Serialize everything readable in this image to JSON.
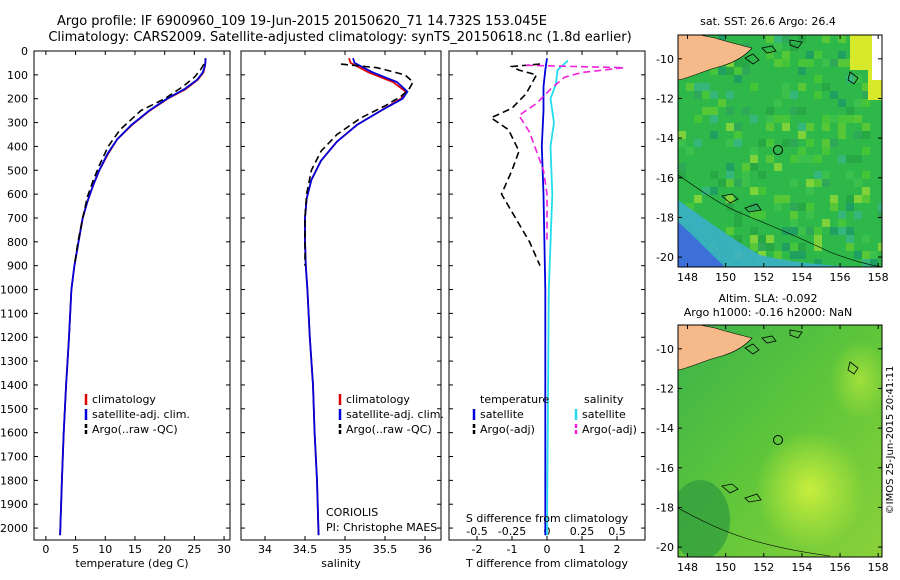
{
  "title": {
    "line1": "Argo profile: IF 6900960_109 19-Jun-2015 20150620_71 14.732S 153.045E",
    "line2": "Climatology: CARS2009. Satellite-adjusted climatology: synTS_20150618.nc (1.8d earlier)"
  },
  "colors": {
    "climatology": "#dd0000",
    "satellite": "#0000dd",
    "argo": "#000000",
    "salinity_sat": "#22ddee",
    "salinity_argo": "#ee22dd",
    "land": "#f5b98a"
  },
  "chart_data": [
    {
      "type": "line",
      "panel": "temperature",
      "xlabel": "temperature (deg C)",
      "ylabel": "",
      "xlim": [
        -2,
        31
      ],
      "ylim": [
        2050,
        0
      ],
      "xticks": [
        "0",
        "5",
        "10",
        "15",
        "20",
        "25",
        "30"
      ],
      "xtick_values": [
        0,
        5,
        10,
        15,
        20,
        25,
        30
      ],
      "yticks": [
        "0",
        "100",
        "200",
        "300",
        "400",
        "500",
        "600",
        "700",
        "800",
        "900",
        "1000",
        "1100",
        "1200",
        "1300",
        "1400",
        "1500",
        "1600",
        "1700",
        "1800",
        "1900",
        "2000"
      ],
      "ytick_values": [
        0,
        100,
        200,
        300,
        400,
        500,
        600,
        700,
        800,
        900,
        1000,
        1100,
        1200,
        1300,
        1400,
        1500,
        1600,
        1700,
        1800,
        1900,
        2000
      ],
      "legend": [
        "climatology",
        "satellite-adj. clim.",
        "Argo(..raw -QC)"
      ],
      "series": [
        {
          "name": "climatology",
          "color": "#dd0000",
          "dash": "solid",
          "points": [
            [
              26.9,
              30
            ],
            [
              26.8,
              60
            ],
            [
              26.5,
              90
            ],
            [
              25.6,
              120
            ],
            [
              23.5,
              160
            ],
            [
              20.5,
              200
            ],
            [
              17.5,
              250
            ],
            [
              14.5,
              310
            ],
            [
              12.0,
              370
            ],
            [
              10.5,
              430
            ],
            [
              9.0,
              500
            ],
            [
              8.0,
              560
            ],
            [
              7.0,
              630
            ],
            [
              6.2,
              700
            ],
            [
              5.5,
              800
            ],
            [
              4.8,
              900
            ],
            [
              4.3,
              1000
            ],
            [
              3.9,
              1200
            ],
            [
              3.4,
              1400
            ],
            [
              3.0,
              1600
            ],
            [
              2.7,
              1800
            ],
            [
              2.4,
              2030
            ]
          ]
        },
        {
          "name": "satellite-adj. clim.",
          "color": "#0000dd",
          "dash": "solid",
          "points": [
            [
              26.9,
              30
            ],
            [
              26.8,
              60
            ],
            [
              26.4,
              90
            ],
            [
              25.5,
              120
            ],
            [
              23.3,
              160
            ],
            [
              20.4,
              200
            ],
            [
              17.4,
              250
            ],
            [
              14.4,
              310
            ],
            [
              12.0,
              370
            ],
            [
              10.4,
              430
            ],
            [
              9.0,
              500
            ],
            [
              8.0,
              560
            ],
            [
              7.0,
              630
            ],
            [
              6.2,
              700
            ],
            [
              5.5,
              800
            ],
            [
              4.8,
              900
            ],
            [
              4.3,
              1000
            ],
            [
              3.9,
              1200
            ],
            [
              3.4,
              1400
            ],
            [
              3.0,
              1600
            ],
            [
              2.7,
              1800
            ],
            [
              2.4,
              2030
            ]
          ]
        },
        {
          "name": "Argo(..raw -QC)",
          "color": "#000000",
          "dash": "dash",
          "points": [
            [
              26.6,
              55
            ],
            [
              26.0,
              80
            ],
            [
              25.0,
              110
            ],
            [
              23.0,
              150
            ],
            [
              20.0,
              200
            ],
            [
              16.0,
              250
            ],
            [
              12.5,
              330
            ],
            [
              10.5,
              400
            ],
            [
              9.0,
              480
            ],
            [
              8.0,
              540
            ],
            [
              7.0,
              610
            ],
            [
              6.2,
              700
            ],
            [
              5.4,
              800
            ],
            [
              4.8,
              900
            ]
          ]
        }
      ],
      "annotations": []
    },
    {
      "type": "line",
      "panel": "salinity",
      "xlabel": "salinity",
      "ylabel": "",
      "xlim": [
        33.7,
        36.2
      ],
      "ylim": [
        2050,
        0
      ],
      "xticks": [
        "34",
        "34.5",
        "35",
        "35.5",
        "36"
      ],
      "xtick_values": [
        34,
        34.5,
        35,
        35.5,
        36
      ],
      "legend": [
        "climatology",
        "satellite-adj. clim.",
        "Argo(..raw -QC)"
      ],
      "series": [
        {
          "name": "climatology",
          "color": "#dd0000",
          "dash": "solid",
          "points": [
            [
              35.05,
              30
            ],
            [
              35.07,
              50
            ],
            [
              35.3,
              90
            ],
            [
              35.6,
              130
            ],
            [
              35.76,
              170
            ],
            [
              35.7,
              200
            ],
            [
              35.45,
              250
            ],
            [
              35.15,
              310
            ],
            [
              34.9,
              380
            ],
            [
              34.7,
              460
            ],
            [
              34.58,
              540
            ],
            [
              34.52,
              620
            ],
            [
              34.5,
              700
            ],
            [
              34.5,
              800
            ],
            [
              34.51,
              900
            ],
            [
              34.53,
              1000
            ],
            [
              34.56,
              1200
            ],
            [
              34.6,
              1400
            ],
            [
              34.62,
              1600
            ],
            [
              34.65,
              1800
            ],
            [
              34.67,
              2030
            ]
          ]
        },
        {
          "name": "satellite-adj. clim.",
          "color": "#0000dd",
          "dash": "solid",
          "points": [
            [
              35.1,
              30
            ],
            [
              35.12,
              50
            ],
            [
              35.35,
              90
            ],
            [
              35.65,
              130
            ],
            [
              35.78,
              170
            ],
            [
              35.72,
              200
            ],
            [
              35.45,
              250
            ],
            [
              35.15,
              310
            ],
            [
              34.9,
              380
            ],
            [
              34.7,
              460
            ],
            [
              34.58,
              540
            ],
            [
              34.52,
              620
            ],
            [
              34.5,
              700
            ],
            [
              34.5,
              800
            ],
            [
              34.51,
              900
            ],
            [
              34.53,
              1000
            ],
            [
              34.56,
              1200
            ],
            [
              34.6,
              1400
            ],
            [
              34.62,
              1600
            ],
            [
              34.65,
              1800
            ],
            [
              34.67,
              2030
            ]
          ]
        },
        {
          "name": "Argo(..raw -QC)",
          "color": "#000000",
          "dash": "dash",
          "points": [
            [
              34.95,
              55
            ],
            [
              35.1,
              60
            ],
            [
              35.4,
              70
            ],
            [
              35.75,
              100
            ],
            [
              35.85,
              130
            ],
            [
              35.8,
              160
            ],
            [
              35.7,
              190
            ],
            [
              35.5,
              230
            ],
            [
              35.2,
              280
            ],
            [
              34.9,
              350
            ],
            [
              34.7,
              420
            ],
            [
              34.58,
              500
            ],
            [
              34.52,
              600
            ],
            [
              34.5,
              700
            ],
            [
              34.5,
              800
            ],
            [
              34.5,
              900
            ]
          ]
        }
      ],
      "annotations": [
        "CORIOLIS",
        "PI: Christophe MAES"
      ]
    },
    {
      "type": "line",
      "panel": "difference",
      "xlabel": "T difference from climatology",
      "xlabel_top": "S difference from climatology",
      "xlim": [
        -2.8,
        2.8
      ],
      "ylim": [
        2050,
        0
      ],
      "xticks": [
        "-2",
        "-1",
        "0",
        "1",
        "2"
      ],
      "xtick_values": [
        -2,
        -1,
        0,
        1,
        2
      ],
      "xticks_top": [
        "-0.5",
        "-0.25",
        "0",
        "0.25",
        "0.5"
      ],
      "xtick_top_values": [
        -2,
        -1,
        0,
        1,
        2
      ],
      "legend_headers": [
        "temperature",
        "salinity"
      ],
      "legend": [
        "satellite",
        "Argo(-adj)",
        "satellite",
        "Argo(-adj)"
      ],
      "series": [
        {
          "name": "temperature satellite",
          "color": "#0000dd",
          "dash": "solid",
          "points": [
            [
              0,
              30
            ],
            [
              -0.05,
              80
            ],
            [
              -0.1,
              150
            ],
            [
              -0.1,
              250
            ],
            [
              -0.15,
              400
            ],
            [
              -0.1,
              600
            ],
            [
              -0.05,
              1000
            ],
            [
              -0.05,
              1500
            ],
            [
              -0.05,
              2030
            ]
          ]
        },
        {
          "name": "temperature Argo(-adj)",
          "color": "#000000",
          "dash": "dash",
          "points": [
            [
              -0.2,
              55
            ],
            [
              -1.0,
              65
            ],
            [
              -0.8,
              80
            ],
            [
              -0.3,
              100
            ],
            [
              -0.6,
              180
            ],
            [
              -1.0,
              240
            ],
            [
              -1.6,
              280
            ],
            [
              -1.1,
              330
            ],
            [
              -0.8,
              420
            ],
            [
              -1.0,
              500
            ],
            [
              -1.3,
              600
            ],
            [
              -0.9,
              700
            ],
            [
              -0.5,
              800
            ],
            [
              -0.2,
              900
            ]
          ]
        },
        {
          "name": "salinity satellite",
          "color": "#22ddee",
          "dash": "solid",
          "points": [
            [
              0.6,
              40
            ],
            [
              0.3,
              80
            ],
            [
              0.25,
              140
            ],
            [
              0.1,
              200
            ],
            [
              0.2,
              300
            ],
            [
              0.1,
              400
            ],
            [
              0.15,
              600
            ],
            [
              0.05,
              1000
            ],
            [
              0.0,
              2030
            ]
          ]
        },
        {
          "name": "salinity Argo(-adj)",
          "color": "#ee22dd",
          "dash": "dash",
          "points": [
            [
              -0.6,
              60
            ],
            [
              2.2,
              70
            ],
            [
              1.0,
              90
            ],
            [
              0.5,
              110
            ],
            [
              0.1,
              160
            ],
            [
              -0.3,
              220
            ],
            [
              -0.8,
              270
            ],
            [
              -0.5,
              340
            ],
            [
              -0.3,
              420
            ],
            [
              -0.1,
              500
            ],
            [
              0.0,
              600
            ],
            [
              0.0,
              700
            ],
            [
              0.0,
              800
            ]
          ]
        }
      ]
    },
    {
      "type": "heatmap",
      "panel": "sst-map",
      "title": "sat. SST: 26.6 Argo: 26.4",
      "xlim": [
        147.5,
        158.2
      ],
      "ylim": [
        -20.5,
        -8.8
      ],
      "xticks": [
        "148",
        "150",
        "152",
        "154",
        "156",
        "158"
      ],
      "xtick_values": [
        148,
        150,
        152,
        154,
        156,
        158
      ],
      "yticks": [
        "-10",
        "-12",
        "-14",
        "-16",
        "-18",
        "-20"
      ],
      "ytick_values": [
        -10,
        -12,
        -14,
        -16,
        -18,
        -20
      ],
      "argo_position": [
        153.045,
        -14.732
      ]
    },
    {
      "type": "heatmap",
      "panel": "sla-map",
      "title": "Altim. SLA: -0.092",
      "subtitle": "Argo h1000: -0.16 h2000: NaN",
      "xlim": [
        147.5,
        158.2
      ],
      "ylim": [
        -20.5,
        -8.8
      ],
      "xticks": [
        "148",
        "150",
        "152",
        "154",
        "156",
        "158"
      ],
      "xtick_values": [
        148,
        150,
        152,
        154,
        156,
        158
      ],
      "yticks": [
        "-10",
        "-12",
        "-14",
        "-16",
        "-18",
        "-20"
      ],
      "ytick_values": [
        -10,
        -12,
        -14,
        -16,
        -18,
        -20
      ],
      "argo_position": [
        153.045,
        -14.732
      ]
    }
  ],
  "side_label": "©IMOS 25-Jun-2015 20:41:11"
}
